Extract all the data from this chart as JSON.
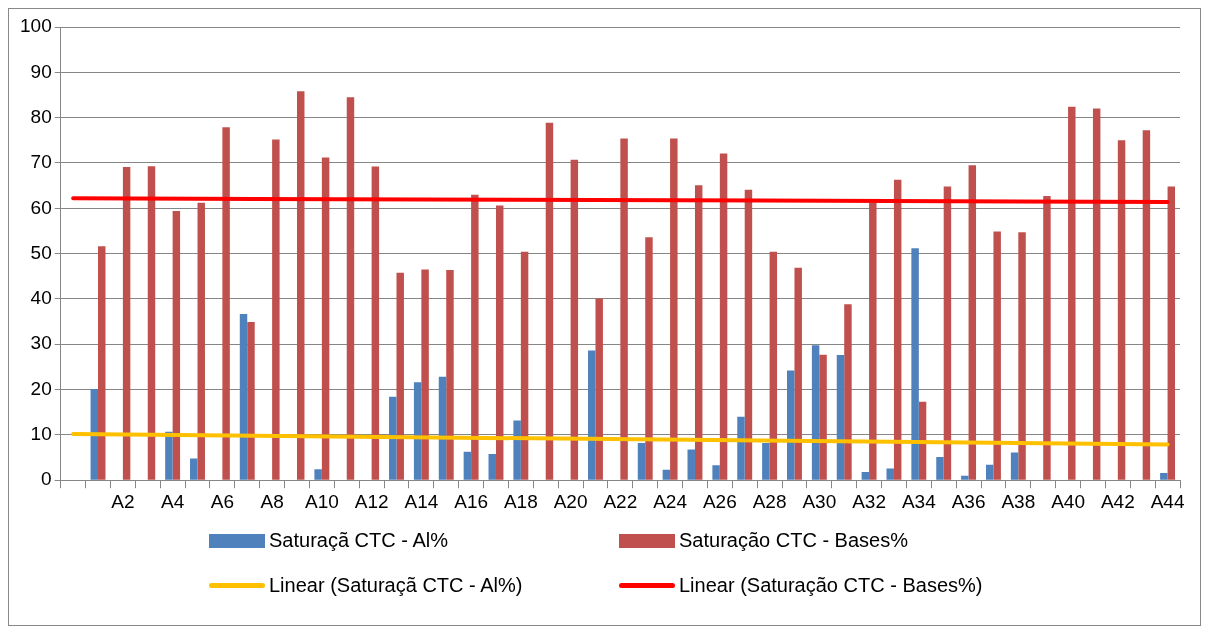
{
  "chart_data": {
    "type": "bar",
    "categories": [
      null,
      null,
      "A2",
      null,
      "A4",
      null,
      "A6",
      null,
      "A8",
      null,
      "A10",
      null,
      "A12",
      null,
      "A14",
      null,
      "A16",
      null,
      "A18",
      null,
      "A20",
      null,
      "A22",
      null,
      "A24",
      null,
      "A26",
      null,
      "A28",
      null,
      "A30",
      null,
      "A32",
      null,
      "A34",
      null,
      "A36",
      null,
      "A38",
      null,
      "A40",
      null,
      "A42",
      null,
      "A44"
    ],
    "series": [
      {
        "name": "Saturaçã CTC - Al%",
        "color": "#4f81bd",
        "values": [
          null,
          20.1,
          0,
          0,
          10.7,
          4.8,
          0,
          36.7,
          0,
          0,
          2.4,
          0,
          0,
          18.4,
          21.6,
          22.8,
          6.3,
          5.8,
          13.2,
          0,
          0,
          28.6,
          0,
          8.2,
          2.3,
          6.8,
          3.3,
          14.0,
          8.2,
          24.2,
          29.8,
          27.6,
          1.8,
          2.6,
          51.2,
          5.1,
          1.0,
          3.4,
          6.1,
          0,
          0,
          0,
          0,
          0,
          1.6
        ]
      },
      {
        "name": "Saturação CTC - Bases%",
        "color": "#c0504d",
        "values": [
          null,
          51.6,
          69.1,
          69.3,
          59.4,
          61.2,
          77.9,
          34.9,
          75.2,
          85.8,
          71.2,
          84.5,
          69.2,
          45.8,
          46.5,
          46.4,
          63.0,
          60.6,
          50.4,
          78.9,
          70.7,
          40.1,
          75.4,
          53.6,
          75.4,
          65.1,
          72.1,
          64.1,
          50.4,
          46.9,
          27.7,
          38.8,
          61.2,
          66.3,
          17.3,
          64.8,
          69.5,
          54.9,
          54.7,
          62.7,
          82.4,
          82.0,
          75.0,
          77.2,
          64.8
        ]
      },
      {
        "name": "Linear (Saturaçã CTC - Al%)",
        "type": "line",
        "color": "#ffc000",
        "values": [
          10.2,
          null,
          null,
          null,
          null,
          null,
          null,
          null,
          null,
          null,
          null,
          null,
          null,
          null,
          null,
          null,
          null,
          null,
          null,
          null,
          null,
          null,
          null,
          null,
          null,
          null,
          null,
          null,
          null,
          null,
          null,
          null,
          null,
          null,
          null,
          null,
          null,
          null,
          null,
          null,
          null,
          null,
          null,
          null,
          7.9
        ]
      },
      {
        "name": "Linear (Saturação CTC - Bases%)",
        "type": "line",
        "color": "#ff0000",
        "values": [
          62.2,
          null,
          null,
          null,
          null,
          null,
          null,
          null,
          null,
          null,
          null,
          null,
          null,
          null,
          null,
          null,
          null,
          null,
          null,
          null,
          null,
          null,
          null,
          null,
          null,
          null,
          null,
          null,
          null,
          null,
          null,
          null,
          null,
          null,
          null,
          null,
          null,
          null,
          null,
          null,
          null,
          null,
          null,
          null,
          61.4
        ]
      }
    ],
    "ylim": [
      0,
      100
    ],
    "yticks": [
      0,
      10,
      20,
      30,
      40,
      50,
      60,
      70,
      80,
      90,
      100
    ],
    "grid": "y",
    "legend": "bottom",
    "marker": "none",
    "line_style": "solid"
  }
}
